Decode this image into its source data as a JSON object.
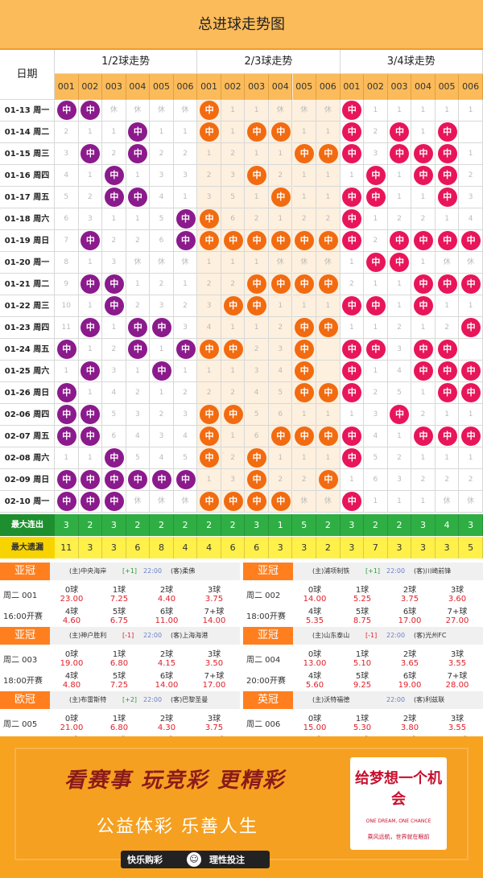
{
  "title": "总进球走势图",
  "header": {
    "date_label": "日期",
    "groups": [
      "1/2球走势",
      "2/3球走势",
      "3/4球走势"
    ],
    "cols": [
      "001",
      "002",
      "003",
      "004",
      "005",
      "006"
    ]
  },
  "ball_text": "中",
  "miss_text": "休",
  "rows": [
    {
      "d": "01-13 周一",
      "g1": [
        1,
        1,
        0,
        0,
        0,
        0
      ],
      "g2": [
        1,
        0,
        0,
        0,
        0,
        0
      ],
      "g3": [
        1,
        0,
        0,
        0,
        0,
        0
      ],
      "m1": [
        "1",
        "",
        "休",
        "休",
        "休",
        "休"
      ],
      "m2": [
        "",
        "1",
        "1",
        "休",
        "休",
        "休"
      ],
      "m3": [
        "",
        "1",
        "1",
        "1",
        "1",
        "1"
      ]
    },
    {
      "d": "01-14 周二",
      "g1": [
        0,
        0,
        0,
        1,
        0,
        0
      ],
      "g2": [
        1,
        0,
        1,
        1,
        0,
        0
      ],
      "g3": [
        1,
        0,
        1,
        0,
        1,
        0
      ],
      "m1": [
        "2",
        "1",
        "1",
        "",
        "1",
        "1"
      ],
      "m2": [
        "",
        "1",
        "",
        "",
        "1",
        "1"
      ],
      "m3": [
        "",
        "2",
        "",
        "1",
        "",
        ""
      ]
    },
    {
      "d": "01-15 周三",
      "g1": [
        0,
        1,
        0,
        1,
        0,
        0
      ],
      "g2": [
        0,
        0,
        0,
        0,
        1,
        1
      ],
      "g3": [
        1,
        0,
        1,
        1,
        1,
        0
      ],
      "m1": [
        "3",
        "",
        "2",
        "",
        "2",
        "2"
      ],
      "m2": [
        "1",
        "2",
        "1",
        "1",
        "",
        ""
      ],
      "m3": [
        "",
        "3",
        "",
        "",
        "",
        "1"
      ]
    },
    {
      "d": "01-16 周四",
      "g1": [
        0,
        0,
        1,
        0,
        0,
        0
      ],
      "g2": [
        0,
        0,
        1,
        0,
        0,
        0
      ],
      "g3": [
        0,
        1,
        0,
        1,
        1,
        0
      ],
      "m1": [
        "4",
        "1",
        "",
        "1",
        "3",
        "3"
      ],
      "m2": [
        "2",
        "3",
        "",
        "2",
        "1",
        "1"
      ],
      "m3": [
        "1",
        "",
        "1",
        "",
        "",
        "2"
      ]
    },
    {
      "d": "01-17 周五",
      "g1": [
        0,
        0,
        1,
        1,
        0,
        0
      ],
      "g2": [
        0,
        0,
        0,
        1,
        0,
        0
      ],
      "g3": [
        1,
        1,
        0,
        0,
        1,
        0
      ],
      "m1": [
        "5",
        "2",
        "",
        "",
        "4",
        "1"
      ],
      "m2": [
        "3",
        "5",
        "1",
        "",
        "1",
        "1"
      ],
      "m3": [
        "",
        "",
        "1",
        "1",
        "",
        "3"
      ]
    },
    {
      "d": "01-18 周六",
      "g1": [
        0,
        0,
        0,
        0,
        0,
        1
      ],
      "g2": [
        1,
        0,
        0,
        0,
        0,
        0
      ],
      "g3": [
        1,
        0,
        0,
        0,
        0,
        0
      ],
      "m1": [
        "6",
        "3",
        "1",
        "1",
        "5",
        ""
      ],
      "m2": [
        "",
        "6",
        "2",
        "1",
        "2",
        "2"
      ],
      "m3": [
        "",
        "1",
        "2",
        "2",
        "1",
        "4"
      ]
    },
    {
      "d": "01-19 周日",
      "g1": [
        0,
        1,
        0,
        0,
        0,
        1
      ],
      "g2": [
        1,
        1,
        1,
        1,
        1,
        1
      ],
      "g3": [
        1,
        0,
        1,
        1,
        1,
        1
      ],
      "m1": [
        "7",
        "",
        "2",
        "2",
        "6",
        ""
      ],
      "m2": [
        "",
        "",
        "",
        "",
        "",
        ""
      ],
      "m3": [
        "",
        "2",
        "",
        "",
        "",
        ""
      ]
    },
    {
      "d": "01-20 周一",
      "g1": [
        0,
        0,
        0,
        0,
        0,
        0
      ],
      "g2": [
        0,
        0,
        0,
        0,
        0,
        0
      ],
      "g3": [
        0,
        1,
        1,
        0,
        0,
        0
      ],
      "m1": [
        "8",
        "1",
        "3",
        "休",
        "休",
        "休"
      ],
      "m2": [
        "1",
        "1",
        "1",
        "休",
        "休",
        "休"
      ],
      "m3": [
        "1",
        "",
        "",
        "1",
        "休",
        "休"
      ]
    },
    {
      "d": "01-21 周二",
      "g1": [
        0,
        1,
        1,
        0,
        0,
        0
      ],
      "g2": [
        0,
        0,
        1,
        1,
        1,
        1
      ],
      "g3": [
        0,
        0,
        0,
        1,
        1,
        1
      ],
      "m1": [
        "9",
        "",
        "",
        "1",
        "2",
        "1"
      ],
      "m2": [
        "2",
        "2",
        "",
        "",
        "",
        ""
      ],
      "m3": [
        "2",
        "1",
        "1",
        "",
        "",
        ""
      ]
    },
    {
      "d": "01-22 周三",
      "g1": [
        0,
        0,
        1,
        0,
        0,
        0
      ],
      "g2": [
        0,
        1,
        1,
        0,
        0,
        0
      ],
      "g3": [
        1,
        1,
        0,
        1,
        0,
        0
      ],
      "m1": [
        "10",
        "1",
        "",
        "2",
        "3",
        "2"
      ],
      "m2": [
        "3",
        "",
        "",
        "1",
        "1",
        "1"
      ],
      "m3": [
        "",
        "",
        "1",
        "",
        "1",
        "1"
      ]
    },
    {
      "d": "01-23 周四",
      "g1": [
        0,
        1,
        0,
        1,
        1,
        0
      ],
      "g2": [
        0,
        0,
        0,
        0,
        1,
        1
      ],
      "g3": [
        0,
        0,
        0,
        0,
        0,
        1
      ],
      "m1": [
        "11",
        "",
        "1",
        "",
        "",
        "3"
      ],
      "m2": [
        "4",
        "1",
        "1",
        "2",
        "",
        ""
      ],
      "m3": [
        "1",
        "1",
        "2",
        "1",
        "2",
        ""
      ]
    },
    {
      "d": "01-24 周五",
      "g1": [
        1,
        0,
        0,
        1,
        0,
        1
      ],
      "g2": [
        1,
        1,
        0,
        0,
        1,
        0
      ],
      "g3": [
        1,
        1,
        0,
        1,
        1,
        0
      ],
      "m1": [
        "",
        "1",
        "2",
        "",
        "1",
        ""
      ],
      "m2": [
        "",
        "",
        "2",
        "3",
        "",
        ""
      ],
      "m3": [
        "",
        "",
        "3",
        "",
        "",
        ""
      ]
    },
    {
      "d": "01-25 周六",
      "g1": [
        0,
        1,
        0,
        0,
        1,
        0
      ],
      "g2": [
        0,
        0,
        0,
        0,
        1,
        0
      ],
      "g3": [
        1,
        0,
        0,
        1,
        1,
        1
      ],
      "m1": [
        "1",
        "",
        "3",
        "1",
        "",
        "1"
      ],
      "m2": [
        "1",
        "1",
        "3",
        "4",
        "",
        ""
      ],
      "m3": [
        "",
        "1",
        "4",
        "",
        "",
        ""
      ]
    },
    {
      "d": "01-26 周日",
      "g1": [
        1,
        0,
        0,
        0,
        0,
        0
      ],
      "g2": [
        0,
        0,
        0,
        0,
        1,
        1
      ],
      "g3": [
        1,
        0,
        0,
        0,
        1,
        1
      ],
      "m1": [
        "",
        "1",
        "4",
        "2",
        "1",
        "2"
      ],
      "m2": [
        "2",
        "2",
        "4",
        "5",
        "",
        ""
      ],
      "m3": [
        "",
        "2",
        "5",
        "1",
        "",
        ""
      ]
    },
    {
      "d": "02-06 周四",
      "g1": [
        1,
        1,
        0,
        0,
        0,
        0
      ],
      "g2": [
        1,
        1,
        0,
        0,
        0,
        0
      ],
      "g3": [
        0,
        0,
        1,
        0,
        0,
        0
      ],
      "m1": [
        "",
        "",
        "5",
        "3",
        "2",
        "3"
      ],
      "m2": [
        "",
        "",
        "5",
        "6",
        "1",
        "1"
      ],
      "m3": [
        "1",
        "3",
        "",
        "2",
        "1",
        "1"
      ]
    },
    {
      "d": "02-07 周五",
      "g1": [
        1,
        1,
        0,
        0,
        0,
        0
      ],
      "g2": [
        1,
        0,
        0,
        1,
        1,
        1
      ],
      "g3": [
        1,
        0,
        0,
        1,
        1,
        1
      ],
      "m1": [
        "",
        "",
        "6",
        "4",
        "3",
        "4"
      ],
      "m2": [
        "",
        "1",
        "6",
        "",
        "",
        ""
      ],
      "m3": [
        "",
        "4",
        "1",
        "",
        "",
        ""
      ]
    },
    {
      "d": "02-08 周六",
      "g1": [
        0,
        0,
        1,
        0,
        0,
        0
      ],
      "g2": [
        1,
        0,
        1,
        0,
        0,
        0
      ],
      "g3": [
        1,
        0,
        0,
        0,
        0,
        0
      ],
      "m1": [
        "1",
        "1",
        "",
        "5",
        "4",
        "5"
      ],
      "m2": [
        "",
        "2",
        "",
        "1",
        "1",
        "1"
      ],
      "m3": [
        "",
        "5",
        "2",
        "1",
        "1",
        "1"
      ]
    },
    {
      "d": "02-09 周日",
      "g1": [
        1,
        1,
        1,
        1,
        1,
        1
      ],
      "g2": [
        0,
        0,
        1,
        0,
        0,
        1
      ],
      "g3": [
        0,
        0,
        0,
        0,
        0,
        0
      ],
      "m1": [
        "",
        "",
        "",
        "",
        "",
        ""
      ],
      "m2": [
        "1",
        "3",
        "",
        "2",
        "2",
        ""
      ],
      "m3": [
        "1",
        "6",
        "3",
        "2",
        "2",
        "2"
      ]
    },
    {
      "d": "02-10 周一",
      "g1": [
        1,
        1,
        1,
        0,
        0,
        0
      ],
      "g2": [
        1,
        1,
        1,
        1,
        0,
        0
      ],
      "g3": [
        1,
        0,
        0,
        0,
        0,
        0
      ],
      "m1": [
        "",
        "",
        "",
        "休",
        "休",
        "休"
      ],
      "m2": [
        "",
        "",
        "",
        "",
        "休",
        "休"
      ],
      "m3": [
        "",
        "1",
        "1",
        "1",
        "休",
        "休"
      ]
    }
  ],
  "stats": {
    "max_streak_label": "最大连出",
    "max_miss_label": "最大遗漏",
    "max_streak": [
      3,
      2,
      3,
      2,
      2,
      2,
      2,
      2,
      3,
      1,
      5,
      2,
      3,
      2,
      2,
      3,
      4,
      3
    ],
    "max_miss": [
      11,
      3,
      3,
      6,
      8,
      4,
      4,
      6,
      6,
      3,
      3,
      2,
      3,
      7,
      3,
      3,
      3,
      5
    ]
  },
  "matches": [
    {
      "league": "亚冠",
      "home": "(主)中央海岸",
      "hcp": "[+1]",
      "kick": "22:00",
      "away": "(客)柔佛",
      "num": "周二 001",
      "time": "16:00开赛",
      "opts": [
        [
          "0球",
          "23.00"
        ],
        [
          "1球",
          "7.25"
        ],
        [
          "2球",
          "4.40"
        ],
        [
          "3球",
          "3.75"
        ],
        [
          "4球",
          "4.60"
        ],
        [
          "5球",
          "6.75"
        ],
        [
          "6球",
          "11.00"
        ],
        [
          "7+球",
          "14.00"
        ]
      ]
    },
    {
      "league": "亚冠",
      "home": "(主)浦项制铁",
      "hcp": "[+1]",
      "kick": "22:00",
      "away": "(客)川崎前锋",
      "num": "周二 002",
      "time": "18:00开赛",
      "opts": [
        [
          "0球",
          "14.00"
        ],
        [
          "1球",
          "5.25"
        ],
        [
          "2球",
          "3.75"
        ],
        [
          "3球",
          "3.60"
        ],
        [
          "4球",
          "5.35"
        ],
        [
          "5球",
          "8.75"
        ],
        [
          "6球",
          "17.00"
        ],
        [
          "7+球",
          "27.00"
        ]
      ]
    },
    {
      "league": "亚冠",
      "home": "(主)神户胜利",
      "hcp": "[-1]",
      "kick": "22:00",
      "away": "(客)上海海港",
      "num": "周二 003",
      "time": "18:00开赛",
      "opts": [
        [
          "0球",
          "19.00"
        ],
        [
          "1球",
          "6.80"
        ],
        [
          "2球",
          "4.15"
        ],
        [
          "3球",
          "3.50"
        ],
        [
          "4球",
          "4.80"
        ],
        [
          "5球",
          "7.25"
        ],
        [
          "6球",
          "14.00"
        ],
        [
          "7+球",
          "17.00"
        ]
      ]
    },
    {
      "league": "亚冠",
      "home": "(主)山东泰山",
      "hcp": "[-1]",
      "kick": "22:00",
      "away": "(客)光州FC",
      "num": "周二 004",
      "time": "20:00开赛",
      "opts": [
        [
          "0球",
          "13.00"
        ],
        [
          "1球",
          "5.10"
        ],
        [
          "2球",
          "3.65"
        ],
        [
          "3球",
          "3.55"
        ],
        [
          "4球",
          "5.60"
        ],
        [
          "5球",
          "9.25"
        ],
        [
          "6球",
          "19.00"
        ],
        [
          "7+球",
          "28.00"
        ]
      ]
    },
    {
      "league": "欧冠",
      "home": "(主)布雷斯特",
      "hcp": "[+2]",
      "kick": "22:00",
      "away": "(客)巴黎圣曼",
      "num": "周二 005",
      "time": "01:45开赛",
      "opts": [
        [
          "0球",
          "21.00"
        ],
        [
          "1球",
          "6.80"
        ],
        [
          "2球",
          "4.30"
        ],
        [
          "3球",
          "3.75"
        ],
        [
          "4球",
          "4.70"
        ],
        [
          "5球",
          "7.25"
        ],
        [
          "6球",
          "11.50"
        ],
        [
          "7+球",
          "14.00"
        ]
      ]
    },
    {
      "league": "英冠",
      "home": "(主)沃特福德",
      "hcp": "",
      "kick": "22:00",
      "away": "(客)利兹联",
      "num": "周二 006",
      "time": "03:45开赛",
      "opts": [
        [
          "0球",
          "15.00"
        ],
        [
          "1球",
          "5.30"
        ],
        [
          "2球",
          "3.80"
        ],
        [
          "3球",
          "3.55"
        ],
        [
          "4球",
          "5.30"
        ],
        [
          "5球",
          "9.00"
        ],
        [
          "6球",
          "16.00"
        ],
        [
          "7+球",
          "24.00"
        ]
      ]
    }
  ],
  "banner": {
    "line1": "看赛事 玩竞彩 更精彩",
    "line2": "公益体彩 乐善人生",
    "badge1": "快乐购彩",
    "badge2": "理性投注",
    "dream_title": "给梦想一个机会",
    "dream_en": "ONE DREAM, ONE CHANCE",
    "dream_sub": "乘风远航，世界就在眼前"
  },
  "colors": {
    "g1": "#8b1a8c",
    "g2": "#f26b10",
    "g3": "#e8155a",
    "hdr": "#fbbb5a",
    "g2bg": "#fdf0de"
  }
}
